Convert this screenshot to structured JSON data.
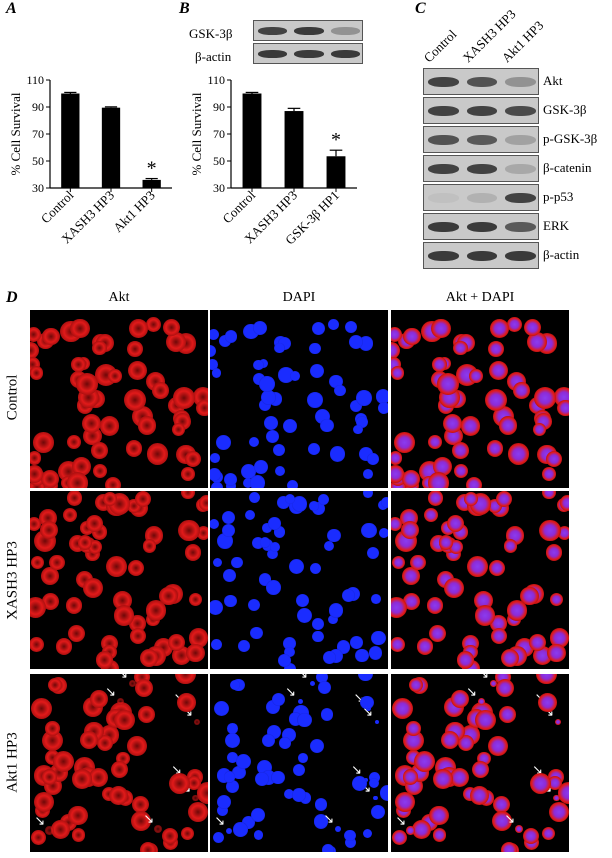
{
  "panel_labels": {
    "a": "A",
    "b": "B",
    "c": "C",
    "d": "D"
  },
  "chart_data": [
    {
      "type": "bar",
      "panel": "A",
      "ylabel": "% Cell Survival",
      "ylim": [
        30,
        110
      ],
      "yticks": [
        30,
        50,
        70,
        90,
        110
      ],
      "categories": [
        "Control",
        "XASH3 HP3",
        "Akt1 HP3"
      ],
      "values": [
        100,
        89.5,
        36
      ],
      "errors": [
        0.8,
        0.6,
        1.0
      ],
      "significance": [
        "",
        "",
        "*"
      ]
    },
    {
      "type": "bar",
      "panel": "B",
      "ylabel": "% Cell Survival",
      "ylim": [
        30,
        110
      ],
      "yticks": [
        30,
        50,
        70,
        90,
        110
      ],
      "categories": [
        "Control",
        "XASH3 HP3",
        "GSK-3β HP1"
      ],
      "values": [
        100,
        87,
        53.5
      ],
      "errors": [
        0.8,
        2.0,
        4.5
      ],
      "significance": [
        "",
        "",
        "*"
      ]
    }
  ],
  "blot_b": {
    "rows": [
      {
        "label": "GSK-3β",
        "intensity": [
          0.85,
          0.9,
          0.35
        ]
      },
      {
        "label": "β-actin",
        "intensity": [
          0.9,
          0.9,
          0.9
        ]
      }
    ]
  },
  "blot_c": {
    "lanes": [
      "Control",
      "XASH3 HP3",
      "Akt1 HP3"
    ],
    "rows": [
      {
        "label": "Akt",
        "intensity": [
          0.85,
          0.75,
          0.35
        ]
      },
      {
        "label": "GSK-3β",
        "intensity": [
          0.85,
          0.85,
          0.8
        ]
      },
      {
        "label": "p-GSK-3β",
        "intensity": [
          0.75,
          0.7,
          0.25
        ]
      },
      {
        "label": "β-catenin",
        "intensity": [
          0.85,
          0.85,
          0.2
        ]
      },
      {
        "label": "p-p53",
        "intensity": [
          0.05,
          0.15,
          0.85
        ]
      },
      {
        "label": "ERK",
        "intensity": [
          0.9,
          0.9,
          0.7
        ]
      },
      {
        "label": "β-actin",
        "intensity": [
          0.9,
          0.9,
          0.9
        ]
      }
    ]
  },
  "micrograph": {
    "columns": [
      "Akt",
      "DAPI",
      "Akt + DAPI"
    ],
    "rows": [
      "Control",
      "XASH3 HP3",
      "Akt1 HP3"
    ],
    "colors": {
      "akt": "#e11a1a",
      "dapi": "#1a2cff",
      "merge_nucleus": "#8a3cf0",
      "arrow": "#ffffff"
    }
  }
}
